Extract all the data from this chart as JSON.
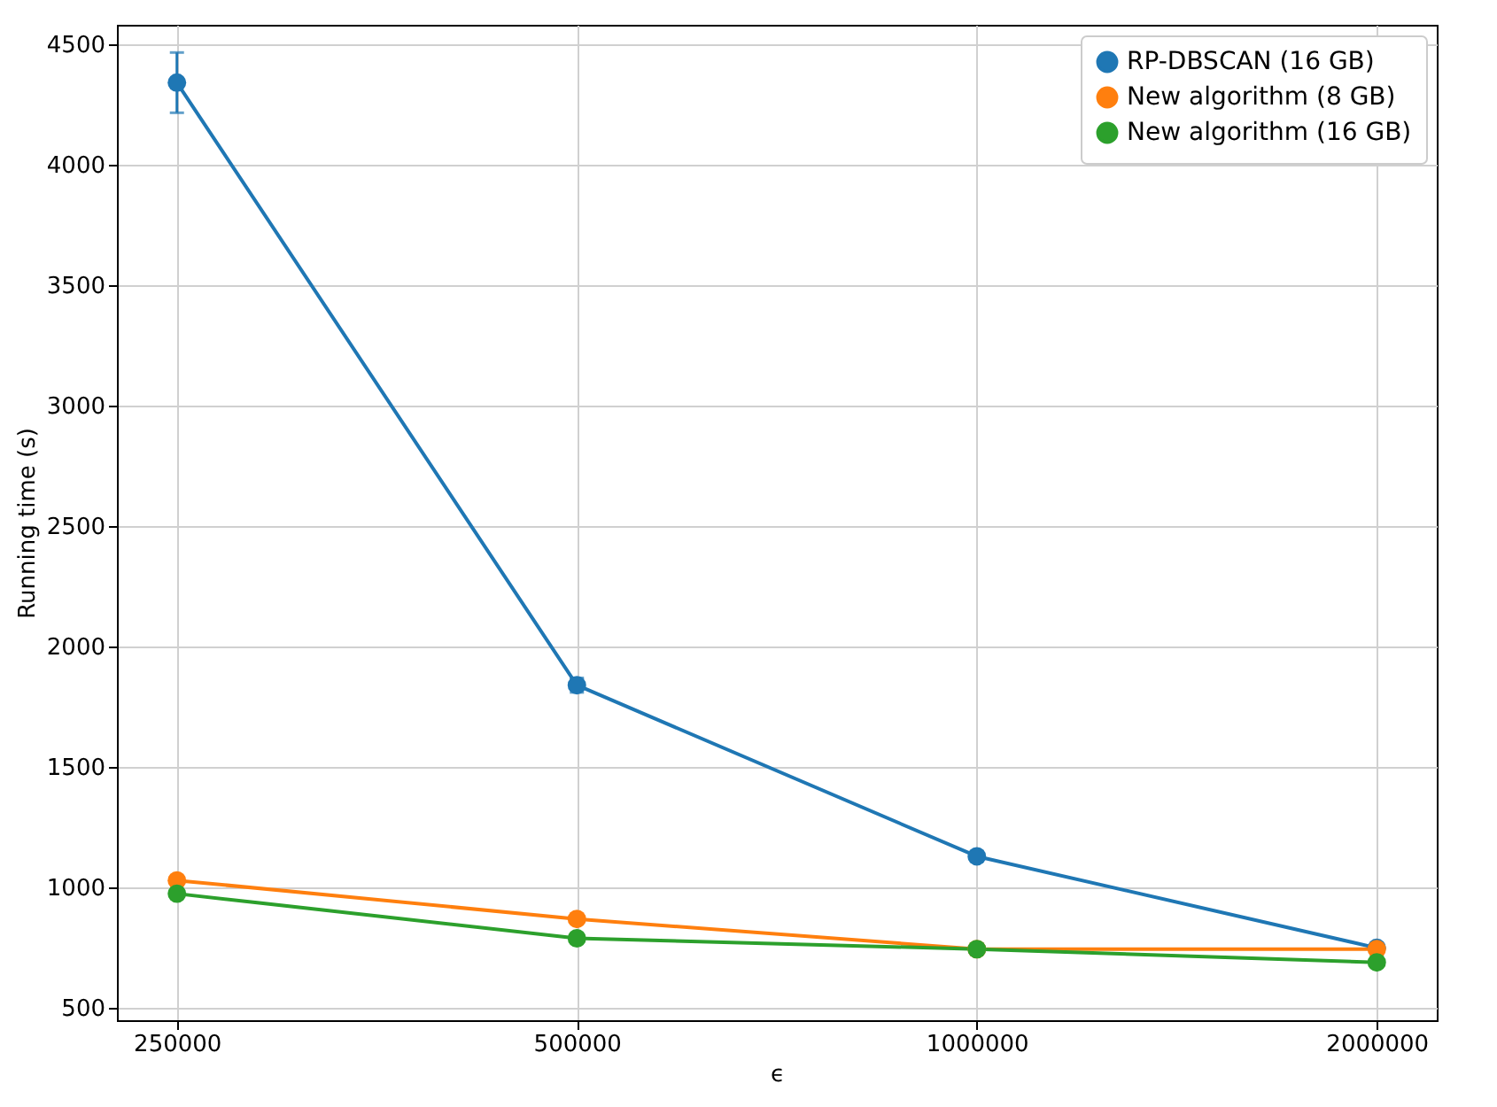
{
  "chart_data": {
    "type": "line",
    "xlabel": "ϵ",
    "ylabel": "Running time (s)",
    "categories": [
      "250000",
      "500000",
      "1000000",
      "2000000"
    ],
    "series": [
      {
        "name": "RP-DBSCAN (16 GB)",
        "color": "#1f77b4",
        "values": [
          4340,
          1840,
          1130,
          750
        ],
        "errors": [
          125,
          30,
          20,
          20
        ]
      },
      {
        "name": "New algorithm (8 GB)",
        "color": "#ff7f0e",
        "values": [
          1030,
          870,
          745,
          745
        ],
        "errors": [
          null,
          null,
          null,
          20
        ]
      },
      {
        "name": "New algorithm (16 GB)",
        "color": "#2ca02c",
        "values": [
          975,
          790,
          745,
          690
        ],
        "errors": [
          null,
          null,
          null,
          null
        ]
      }
    ],
    "ylim": [
      450,
      4580
    ],
    "yticks": [
      500,
      1000,
      1500,
      2000,
      2500,
      3000,
      3500,
      4000,
      4500
    ],
    "grid": true,
    "legend": "top right",
    "marker": "circle",
    "line_style": "solid"
  }
}
